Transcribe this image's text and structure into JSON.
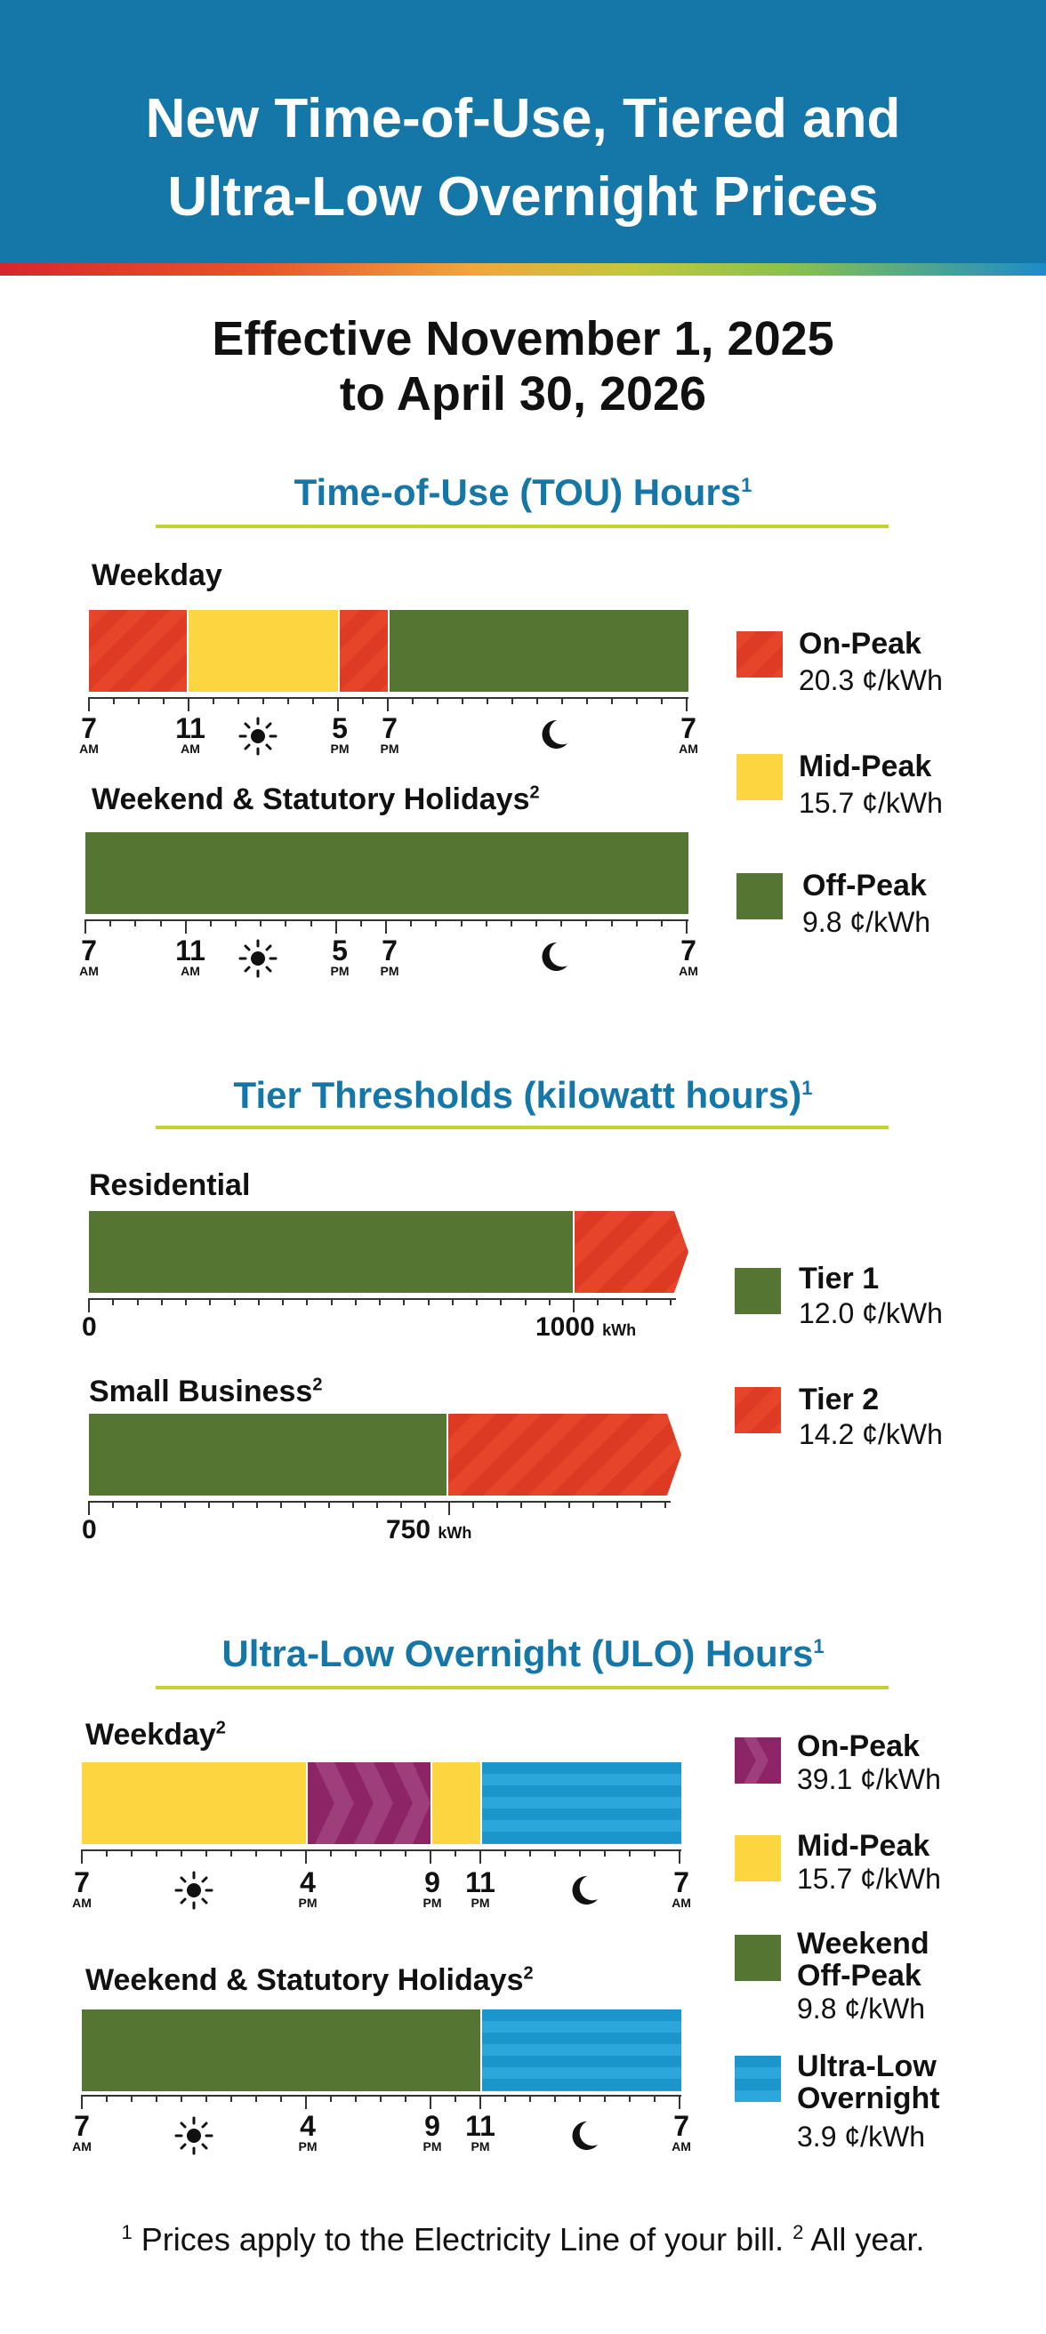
{
  "header": {
    "title_line1": "New Time-of-Use, Tiered and",
    "title_line2": "Ultra-Low Overnight Prices"
  },
  "effective": {
    "line1": "Effective November 1, 2025",
    "line2": "to April 30, 2026"
  },
  "tou": {
    "title": "Time-of-Use (TOU) Hours",
    "title_sup": "1",
    "weekday_label": "Weekday",
    "weekend_label": "Weekend & Statutory Holidays",
    "weekend_sup": "2",
    "tick_labels": [
      "7",
      "11",
      "5",
      "7",
      "7"
    ],
    "tick_ampm": [
      "AM",
      "AM",
      "PM",
      "PM",
      "AM"
    ],
    "legend": [
      {
        "name": "On-Peak",
        "price": "20.3 ¢/kWh",
        "color": "#e2412a"
      },
      {
        "name": "Mid-Peak",
        "price": "15.7 ¢/kWh",
        "color": "#fcd640"
      },
      {
        "name": "Off-Peak",
        "price": "9.8 ¢/kWh",
        "color": "#557533"
      }
    ]
  },
  "tier": {
    "title": "Tier Thresholds (kilowatt hours)",
    "title_sup": "1",
    "residential_label": "Residential",
    "residential_start": "0",
    "residential_threshold": "1000",
    "small_business_label": "Small Business",
    "small_business_sup": "2",
    "small_business_start": "0",
    "small_business_threshold": "750",
    "unit": "kWh",
    "legend": [
      {
        "name": "Tier 1",
        "price": "12.0 ¢/kWh",
        "color": "#557533"
      },
      {
        "name": "Tier 2",
        "price": "14.2 ¢/kWh",
        "color": "#e2412a"
      }
    ]
  },
  "ulo": {
    "title": "Ultra-Low Overnight (ULO) Hours",
    "title_sup": "1",
    "weekday_label": "Weekday",
    "weekday_sup": "2",
    "weekend_label": "Weekend & Statutory Holidays",
    "weekend_sup": "2",
    "tick_labels": [
      "7",
      "4",
      "9",
      "11",
      "7"
    ],
    "tick_ampm": [
      "AM",
      "PM",
      "PM",
      "PM",
      "AM"
    ],
    "legend": [
      {
        "name": "On-Peak",
        "price": "39.1 ¢/kWh",
        "color": "#8c2466"
      },
      {
        "name": "Mid-Peak",
        "price": "15.7 ¢/kWh",
        "color": "#fcd640"
      },
      {
        "name_line1": "Weekend",
        "name_line2": "Off-Peak",
        "price": "9.8 ¢/kWh",
        "color": "#557533"
      },
      {
        "name_line1": "Ultra-Low",
        "name_line2": "Overnight",
        "price": "3.9 ¢/kWh",
        "color": "#1a96cc"
      }
    ]
  },
  "footnote": {
    "sup1": "1",
    "text1": " Prices apply to the Electricity Line of your bill. ",
    "sup2": "2",
    "text2": " All year."
  },
  "icons": {
    "sun": "sun-icon",
    "moon": "moon-icon"
  }
}
